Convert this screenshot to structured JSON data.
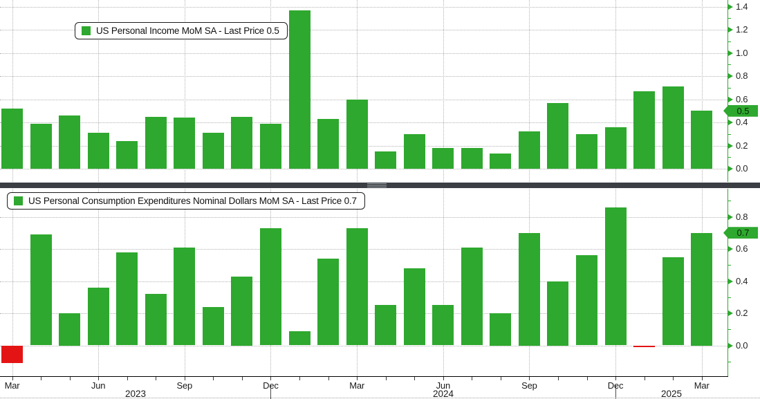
{
  "panels": {
    "income": {
      "legend": "US Personal Income MoM SA - Last Price 0.5",
      "last_price_label": "0.5"
    },
    "pce": {
      "legend": "US Personal Consumption Expenditures Nominal Dollars MoM SA - Last Price 0.7",
      "last_price_label": "0.7"
    }
  },
  "x_axis": {
    "quarter_labels": [
      "Mar",
      "Jun",
      "Sep",
      "Dec",
      "Mar",
      "Jun",
      "Sep",
      "Dec",
      "Mar"
    ],
    "year_labels": [
      "2023",
      "2024",
      "2025"
    ]
  },
  "colors": {
    "bar_green": "#2ea82e",
    "bar_red": "#e51414",
    "axis_green": "#2ea82e",
    "grid_gray": "#b2b2b2",
    "divider_dark": "#3b3e42",
    "text_dark": "#1a1a1a"
  },
  "chart_data": [
    {
      "panel": "income",
      "type": "bar",
      "title": "US Personal Income MoM SA",
      "legend": "US Personal Income MoM SA - Last Price 0.5",
      "last_price": 0.5,
      "categories": [
        "Mar 2023",
        "Apr 2023",
        "May 2023",
        "Jun 2023",
        "Jul 2023",
        "Aug 2023",
        "Sep 2023",
        "Oct 2023",
        "Nov 2023",
        "Dec 2023",
        "Jan 2024",
        "Feb 2024",
        "Mar 2024",
        "Apr 2024",
        "May 2024",
        "Jun 2024",
        "Jul 2024",
        "Aug 2024",
        "Sep 2024",
        "Oct 2024",
        "Nov 2024",
        "Dec 2024",
        "Jan 2025",
        "Feb 2025",
        "Mar 2025"
      ],
      "values": [
        0.52,
        0.39,
        0.46,
        0.31,
        0.24,
        0.45,
        0.44,
        0.31,
        0.45,
        0.39,
        1.37,
        0.43,
        0.6,
        0.15,
        0.3,
        0.18,
        0.18,
        0.13,
        0.32,
        0.57,
        0.3,
        0.36,
        0.67,
        0.71,
        0.5
      ],
      "yticks": [
        0.0,
        0.2,
        0.4,
        0.6,
        0.8,
        1.0,
        1.2,
        1.4
      ],
      "minor_ticks": [
        0.1,
        0.3,
        0.5,
        0.7,
        0.9,
        1.1,
        1.3
      ],
      "ylim": [
        -0.11,
        1.46
      ],
      "grid": true,
      "legend_position": "top-left",
      "axis_side": "right"
    },
    {
      "panel": "pce",
      "type": "bar",
      "title": "US Personal Consumption Expenditures Nominal Dollars MoM SA",
      "legend": "US Personal Consumption Expenditures Nominal Dollars MoM SA - Last Price 0.7",
      "last_price": 0.7,
      "categories": [
        "Mar 2023",
        "Apr 2023",
        "May 2023",
        "Jun 2023",
        "Jul 2023",
        "Aug 2023",
        "Sep 2023",
        "Oct 2023",
        "Nov 2023",
        "Dec 2023",
        "Jan 2024",
        "Feb 2024",
        "Mar 2024",
        "Apr 2024",
        "May 2024",
        "Jun 2024",
        "Jul 2024",
        "Aug 2024",
        "Sep 2024",
        "Oct 2024",
        "Nov 2024",
        "Dec 2024",
        "Jan 2025",
        "Feb 2025",
        "Mar 2025"
      ],
      "values": [
        -0.11,
        0.69,
        0.2,
        0.36,
        0.58,
        0.32,
        0.61,
        0.24,
        0.43,
        0.73,
        0.09,
        0.54,
        0.73,
        0.25,
        0.48,
        0.25,
        0.61,
        0.2,
        0.7,
        0.4,
        0.56,
        0.86,
        -0.01,
        0.55,
        0.7
      ],
      "yticks": [
        0.0,
        0.2,
        0.4,
        0.6,
        0.8
      ],
      "minor_ticks": [
        -0.1,
        0.1,
        0.3,
        0.5,
        0.7,
        0.9
      ],
      "ylim": [
        -0.19,
        0.97
      ],
      "grid": true,
      "legend_position": "top-left",
      "axis_side": "right"
    }
  ]
}
